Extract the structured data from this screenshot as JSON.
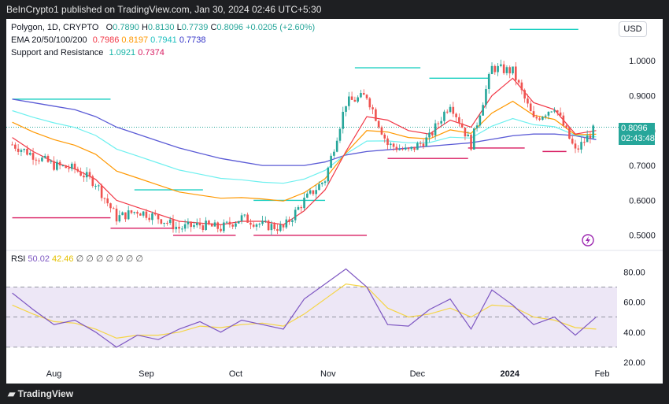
{
  "header": {
    "published_text": "BeInCrypto1 published on TradingView.com, Jan 30, 2024 02:46 UTC+5:30"
  },
  "legend": {
    "symbol": "Polygon, 1D, CRYPTO",
    "ohlc": {
      "o_label": "O",
      "o": "0.7890",
      "h_label": "H",
      "h": "0.8130",
      "l_label": "L",
      "l": "0.7739",
      "c_label": "C",
      "c": "0.8096",
      "change": "+0.0205 (+2.60%)"
    },
    "ema": {
      "label": "EMA 20/50/100/200",
      "values": [
        "0.7986",
        "0.8197",
        "0.7941",
        "0.7738"
      ]
    },
    "sr": {
      "label": "Support and Resistance",
      "values": [
        "1.0921",
        "0.7374"
      ]
    },
    "currency": "USD"
  },
  "price_tag": {
    "price": "0.8096",
    "countdown": "02:43:48"
  },
  "rsi_legend": {
    "label": "RSI",
    "v1": "50.02",
    "v2": "42.46",
    "placeholders": "∅ ∅ ∅ ∅ ∅ ∅ ∅"
  },
  "footer": {
    "brand": "TradingView"
  },
  "colors": {
    "up": "#26a69a",
    "down": "#ef5350",
    "ema20": "#f23645",
    "ema50": "#ff9800",
    "ema100": "#6ef0ef",
    "ema200": "#5b5bd6",
    "support": "#d81b60",
    "resistance": "#19cfc0",
    "rsi": "#7e57c2",
    "rsi_ma": "#f5d547",
    "rsi_band": "#ede7f6"
  },
  "chart_data": [
    {
      "type": "candlestick",
      "y_ticks": [
        "1.0000",
        "0.9000",
        "0.8000",
        "0.7000",
        "0.6000",
        "0.5000"
      ],
      "ylim": [
        0.47,
        1.12
      ],
      "x_ticks": [
        "Aug",
        "Sep",
        "Oct",
        "Nov",
        "Dec",
        "2024",
        "Feb"
      ],
      "close_path": [
        {
          "x": "2023-07-18",
          "y": 0.76
        },
        {
          "x": "2023-07-25",
          "y": 0.73
        },
        {
          "x": "2023-08-01",
          "y": 0.7
        },
        {
          "x": "2023-08-08",
          "y": 0.69
        },
        {
          "x": "2023-08-15",
          "y": 0.65
        },
        {
          "x": "2023-08-22",
          "y": 0.55
        },
        {
          "x": "2023-08-29",
          "y": 0.57
        },
        {
          "x": "2023-09-05",
          "y": 0.55
        },
        {
          "x": "2023-09-12",
          "y": 0.52
        },
        {
          "x": "2023-09-19",
          "y": 0.53
        },
        {
          "x": "2023-09-26",
          "y": 0.52
        },
        {
          "x": "2023-10-03",
          "y": 0.55
        },
        {
          "x": "2023-10-10",
          "y": 0.53
        },
        {
          "x": "2023-10-17",
          "y": 0.52
        },
        {
          "x": "2023-10-24",
          "y": 0.6
        },
        {
          "x": "2023-10-31",
          "y": 0.66
        },
        {
          "x": "2023-11-07",
          "y": 0.88
        },
        {
          "x": "2023-11-14",
          "y": 0.9
        },
        {
          "x": "2023-11-21",
          "y": 0.76
        },
        {
          "x": "2023-11-28",
          "y": 0.74
        },
        {
          "x": "2023-12-05",
          "y": 0.78
        },
        {
          "x": "2023-12-12",
          "y": 0.88
        },
        {
          "x": "2023-12-19",
          "y": 0.76
        },
        {
          "x": "2023-12-26",
          "y": 0.98
        },
        {
          "x": "2024-01-02",
          "y": 0.97
        },
        {
          "x": "2024-01-09",
          "y": 0.83
        },
        {
          "x": "2024-01-16",
          "y": 0.87
        },
        {
          "x": "2024-01-23",
          "y": 0.74
        },
        {
          "x": "2024-01-30",
          "y": 0.81
        }
      ],
      "ema_lines": {
        "ema20": [
          0.78,
          0.74,
          0.71,
          0.69,
          0.66,
          0.6,
          0.58,
          0.56,
          0.54,
          0.535,
          0.53,
          0.54,
          0.54,
          0.53,
          0.57,
          0.63,
          0.74,
          0.84,
          0.83,
          0.8,
          0.79,
          0.83,
          0.81,
          0.9,
          0.95,
          0.88,
          0.86,
          0.79,
          0.8
        ],
        "ema200": [
          0.89,
          0.88,
          0.87,
          0.86,
          0.84,
          0.81,
          0.79,
          0.77,
          0.75,
          0.735,
          0.72,
          0.71,
          0.7,
          0.7,
          0.7,
          0.71,
          0.73,
          0.74,
          0.745,
          0.75,
          0.755,
          0.76,
          0.765,
          0.775,
          0.785,
          0.79,
          0.79,
          0.785,
          0.774
        ]
      },
      "support_resistance": [
        {
          "kind": "resistance",
          "value": 0.89,
          "from": "2023-07-18",
          "to": "2023-08-20"
        },
        {
          "kind": "support",
          "value": 0.55,
          "from": "2023-07-18",
          "to": "2023-08-20"
        },
        {
          "kind": "resistance",
          "value": 0.63,
          "from": "2023-08-28",
          "to": "2023-09-20"
        },
        {
          "kind": "support",
          "value": 0.52,
          "from": "2023-08-20",
          "to": "2023-09-10"
        },
        {
          "kind": "support",
          "value": 0.5,
          "from": "2023-09-10",
          "to": "2023-10-01"
        },
        {
          "kind": "resistance",
          "value": 0.6,
          "from": "2023-10-07",
          "to": "2023-10-31"
        },
        {
          "kind": "support",
          "value": 0.5,
          "from": "2023-10-07",
          "to": "2023-11-14"
        },
        {
          "kind": "resistance",
          "value": 0.98,
          "from": "2023-11-10",
          "to": "2023-12-02"
        },
        {
          "kind": "support",
          "value": 0.72,
          "from": "2023-11-21",
          "to": "2023-12-18"
        },
        {
          "kind": "resistance",
          "value": 0.95,
          "from": "2023-12-05",
          "to": "2023-12-25"
        },
        {
          "kind": "resistance",
          "value": 1.09,
          "from": "2024-01-01",
          "to": "2024-01-24"
        },
        {
          "kind": "support",
          "value": 0.75,
          "from": "2023-12-18",
          "to": "2024-01-06"
        },
        {
          "kind": "support",
          "value": 0.74,
          "from": "2024-01-12",
          "to": "2024-01-20"
        }
      ]
    },
    {
      "type": "line",
      "series_label": "RSI",
      "y_ticks": [
        "80.00",
        "60.00",
        "40.00",
        "20.00"
      ],
      "ylim": [
        20,
        88
      ],
      "bands": [
        30,
        70
      ],
      "rsi": [
        66,
        55,
        45,
        48,
        40,
        30,
        38,
        35,
        42,
        47,
        40,
        48,
        45,
        42,
        62,
        72,
        82,
        70,
        45,
        44,
        55,
        62,
        42,
        68,
        58,
        45,
        50,
        38,
        50
      ],
      "rsi_ma": [
        58,
        52,
        47,
        46,
        42,
        36,
        38,
        38,
        40,
        44,
        43,
        45,
        46,
        44,
        52,
        62,
        72,
        70,
        56,
        50,
        52,
        56,
        50,
        58,
        57,
        50,
        48,
        43,
        42
      ]
    }
  ]
}
